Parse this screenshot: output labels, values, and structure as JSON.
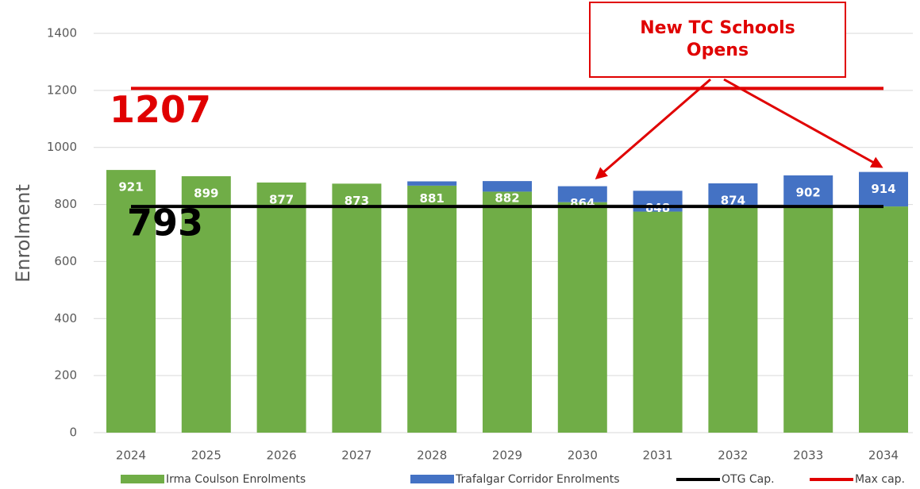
{
  "chart_data": {
    "type": "bar",
    "ylabel": "Enrolment",
    "categories": [
      "2024",
      "2025",
      "2026",
      "2027",
      "2028",
      "2029",
      "2030",
      "2031",
      "2032",
      "2033",
      "2034"
    ],
    "series": [
      {
        "name": "Irma Coulson Enrolments",
        "color": "#70ad47",
        "values": [
          921,
          899,
          877,
          873,
          866,
          845,
          808,
          775,
          795,
          795,
          793
        ]
      },
      {
        "name": "Trafalgar Corridor Enrolments",
        "color": "#4472c4",
        "values": [
          0,
          0,
          0,
          0,
          15,
          37,
          56,
          73,
          79,
          107,
          121
        ]
      }
    ],
    "totals": [
      921,
      899,
      877,
      873,
      881,
      882,
      864,
      848,
      874,
      902,
      914
    ],
    "lines": [
      {
        "name": "OTG Cap.",
        "color": "#000000",
        "value": 793
      },
      {
        "name": "Max cap.",
        "color": "#e00000",
        "value": 1207
      }
    ],
    "annotation": "New TC Schools Opens",
    "ylim": [
      0,
      1400
    ],
    "yticks": [
      0,
      200,
      400,
      600,
      800,
      1000,
      1200,
      1400
    ],
    "grid": true
  }
}
